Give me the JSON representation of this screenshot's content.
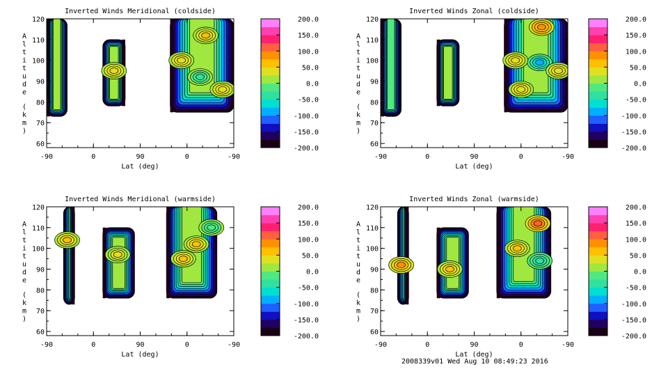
{
  "colors": {
    "scale": [
      "#1a0014",
      "#200060",
      "#1010c0",
      "#2060ff",
      "#00b0ff",
      "#00e0d0",
      "#30e0a0",
      "#50e880",
      "#a0e840",
      "#e0e020",
      "#ffc000",
      "#ff9000",
      "#ff6040",
      "#ff2070",
      "#ff40b0",
      "#ff80ff"
    ],
    "contour_line": "#000000"
  },
  "footer": {
    "run_info": "2008339v01 Wed Aug 10 08:49:23 2016"
  },
  "chart_data": [
    {
      "type": "heatmap",
      "id": "meridional-coldside",
      "title": "Inverted Winds Meridional (coldside)",
      "xlabel": "Lat (deg)",
      "ylabel": "Altitude (km)",
      "ylabel_chars": [
        "A",
        "l",
        "t",
        "i",
        "t",
        "u",
        "d",
        "e",
        "(",
        "k",
        "m",
        ")"
      ],
      "x_ticks": [
        "-90",
        "0",
        "90",
        "0",
        "-90"
      ],
      "y_ticks": [
        "60",
        "70",
        "80",
        "90",
        "100",
        "110",
        "120"
      ],
      "ylim": [
        58,
        120
      ],
      "colorbar_ticks": [
        "200.0",
        "150.0",
        "100.0",
        "50.0",
        "0.0",
        "-50.0",
        "-100.0",
        "-150.0",
        "-200.0"
      ],
      "zlim": [
        -200,
        200
      ],
      "regions": [
        {
          "x0": 0.0,
          "x1": 0.11,
          "y0": 73,
          "y1": 120,
          "val": 20,
          "edge": "left"
        },
        {
          "x0": 0.3,
          "x1": 0.42,
          "y0": 78,
          "y1": 110,
          "val": 10,
          "edge": "right"
        },
        {
          "x0": 0.66,
          "x1": 1.0,
          "y0": 75,
          "y1": 120,
          "val": 15,
          "edge": "left"
        }
      ],
      "blobs": [
        {
          "x": 0.85,
          "y": 112,
          "val": 60
        },
        {
          "x": 0.72,
          "y": 100,
          "val": 45
        },
        {
          "x": 0.94,
          "y": 86,
          "val": 40
        },
        {
          "x": 0.82,
          "y": 92,
          "val": -30
        },
        {
          "x": 0.36,
          "y": 95,
          "val": 40
        }
      ]
    },
    {
      "type": "heatmap",
      "id": "zonal-coldside",
      "title": "Inverted Winds Zonal (coldside)",
      "xlabel": "Lat (deg)",
      "ylabel": "Altitude (km)",
      "ylabel_chars": [
        "A",
        "l",
        "t",
        "i",
        "t",
        "u",
        "d",
        "e",
        "(",
        "k",
        "m",
        ")"
      ],
      "x_ticks": [
        "-90",
        "0",
        "90",
        "0",
        "-90"
      ],
      "y_ticks": [
        "60",
        "70",
        "80",
        "90",
        "100",
        "110",
        "120"
      ],
      "ylim": [
        58,
        120
      ],
      "colorbar_ticks": [
        "200.0",
        "150.0",
        "100.0",
        "50.0",
        "0.0",
        "-50.0",
        "-100.0",
        "-150.0",
        "-200.0"
      ],
      "zlim": [
        -200,
        200
      ],
      "regions": [
        {
          "x0": 0.0,
          "x1": 0.11,
          "y0": 73,
          "y1": 120,
          "val": -10,
          "edge": "left"
        },
        {
          "x0": 0.3,
          "x1": 0.42,
          "y0": 78,
          "y1": 110,
          "val": 20,
          "edge": "left"
        },
        {
          "x0": 0.66,
          "x1": 1.0,
          "y0": 75,
          "y1": 120,
          "val": 0,
          "edge": "left"
        }
      ],
      "blobs": [
        {
          "x": 0.86,
          "y": 116,
          "val": 90
        },
        {
          "x": 0.85,
          "y": 99,
          "val": -100
        },
        {
          "x": 0.72,
          "y": 100,
          "val": 40
        },
        {
          "x": 0.95,
          "y": 95,
          "val": 40
        },
        {
          "x": 0.75,
          "y": 86,
          "val": 40
        }
      ]
    },
    {
      "type": "heatmap",
      "id": "meridional-warmside",
      "title": "Inverted Winds Meridional (warmside)",
      "xlabel": "Lat (deg)",
      "ylabel": "Altitude (km)",
      "ylabel_chars": [
        "A",
        "l",
        "t",
        "i",
        "t",
        "u",
        "d",
        "e",
        "(",
        "k",
        "m",
        ")"
      ],
      "x_ticks": [
        "-90",
        "0",
        "90",
        "0",
        "-90"
      ],
      "y_ticks": [
        "60",
        "70",
        "80",
        "90",
        "100",
        "110",
        "120"
      ],
      "ylim": [
        58,
        120
      ],
      "colorbar_ticks": [
        "200.0",
        "150.0",
        "100.0",
        "50.0",
        "0.0",
        "-50.0",
        "-100.0",
        "-150.0",
        "-200.0"
      ],
      "zlim": [
        -200,
        200
      ],
      "regions": [
        {
          "x0": 0.09,
          "x1": 0.15,
          "y0": 73,
          "y1": 120,
          "val": 20,
          "edge": "right"
        },
        {
          "x0": 0.3,
          "x1": 0.47,
          "y0": 76,
          "y1": 110,
          "val": 10,
          "edge": "left"
        },
        {
          "x0": 0.64,
          "x1": 0.91,
          "y0": 76,
          "y1": 120,
          "val": 10,
          "edge": "left"
        }
      ],
      "blobs": [
        {
          "x": 0.11,
          "y": 104,
          "val": 60
        },
        {
          "x": 0.38,
          "y": 97,
          "val": 30
        },
        {
          "x": 0.73,
          "y": 95,
          "val": 60
        },
        {
          "x": 0.8,
          "y": 102,
          "val": 50
        },
        {
          "x": 0.88,
          "y": 110,
          "val": -20
        }
      ]
    },
    {
      "type": "heatmap",
      "id": "zonal-warmside",
      "title": "Inverted Winds Zonal (warmside)",
      "xlabel": "Lat (deg)",
      "ylabel": "Altitude (km)",
      "ylabel_chars": [
        "A",
        "l",
        "t",
        "i",
        "t",
        "u",
        "d",
        "e",
        "(",
        "k",
        "m",
        ")"
      ],
      "x_ticks": [
        "-90",
        "0",
        "90",
        "0",
        "-90"
      ],
      "y_ticks": [
        "60",
        "70",
        "80",
        "90",
        "100",
        "110",
        "120"
      ],
      "ylim": [
        58,
        120
      ],
      "colorbar_ticks": [
        "200.0",
        "150.0",
        "100.0",
        "50.0",
        "0.0",
        "-50.0",
        "-100.0",
        "-150.0",
        "-200.0"
      ],
      "zlim": [
        -200,
        200
      ],
      "regions": [
        {
          "x0": 0.09,
          "x1": 0.15,
          "y0": 73,
          "y1": 120,
          "val": 30,
          "edge": "right"
        },
        {
          "x0": 0.3,
          "x1": 0.47,
          "y0": 76,
          "y1": 110,
          "val": 20,
          "edge": "left"
        },
        {
          "x0": 0.62,
          "x1": 0.91,
          "y0": 76,
          "y1": 120,
          "val": 10,
          "edge": "left"
        }
      ],
      "blobs": [
        {
          "x": 0.11,
          "y": 92,
          "val": 80
        },
        {
          "x": 0.37,
          "y": 90,
          "val": 60
        },
        {
          "x": 0.84,
          "y": 112,
          "val": 100
        },
        {
          "x": 0.73,
          "y": 100,
          "val": 50
        },
        {
          "x": 0.85,
          "y": 94,
          "val": -40
        }
      ]
    }
  ]
}
